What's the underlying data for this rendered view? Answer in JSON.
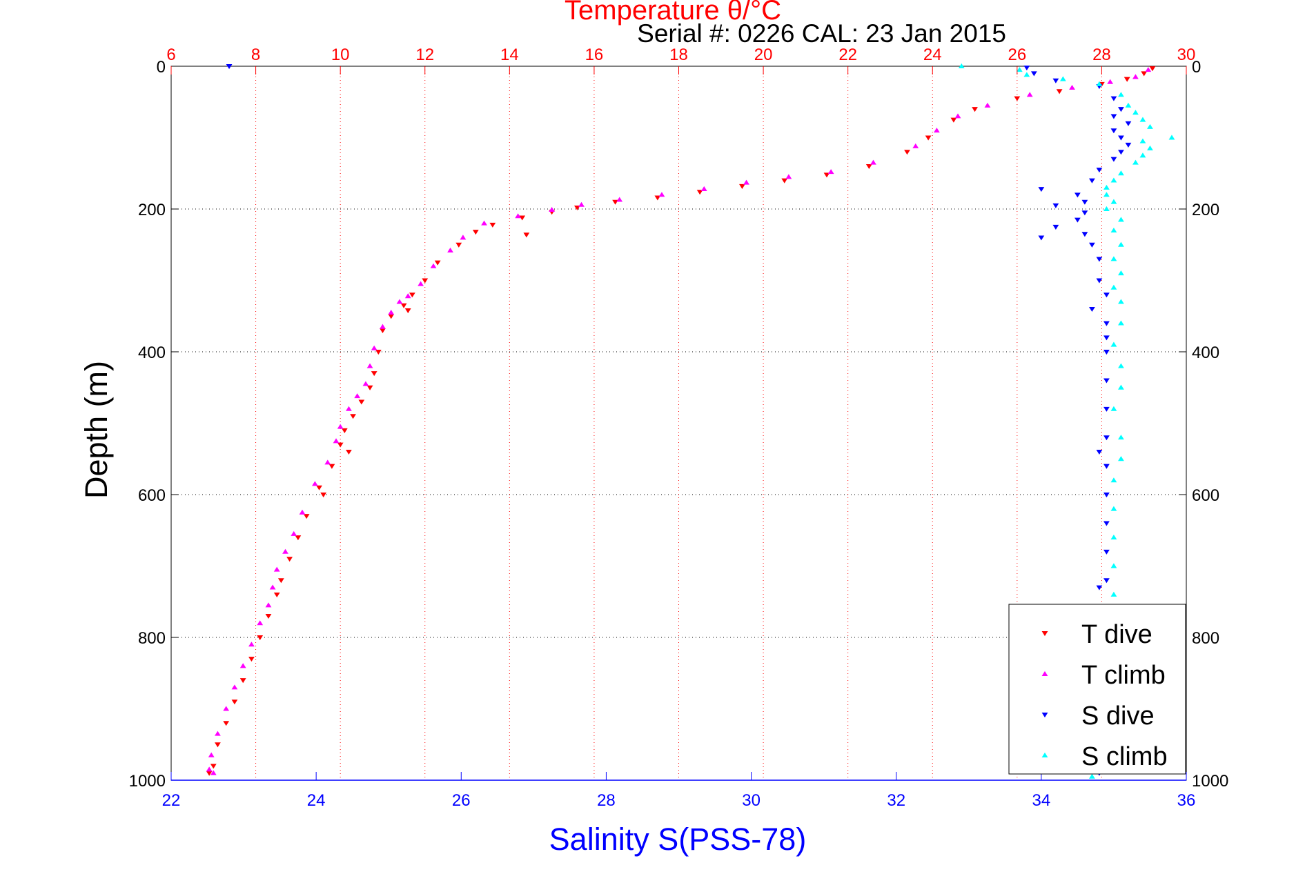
{
  "chart_data": {
    "type": "scatter",
    "title": "Temperature θ/°C",
    "subtitle": "Serial #: 0226  CAL: 23 Jan 2015",
    "ylabel": "Depth (m)",
    "xlabel": "Salinity S(PSS-78)",
    "ylim": [
      0,
      1000
    ],
    "y_reversed": true,
    "y_ticks": [
      "0",
      "200",
      "400",
      "600",
      "800",
      "1000"
    ],
    "x_top": {
      "name": "Temperature",
      "lim": [
        6,
        30
      ],
      "ticks": [
        "6",
        "8",
        "10",
        "12",
        "14",
        "16",
        "18",
        "20",
        "22",
        "24",
        "26",
        "28",
        "30"
      ],
      "color": "#ff0000"
    },
    "x_bottom": {
      "name": "Salinity",
      "lim": [
        22,
        36
      ],
      "ticks": [
        "22",
        "24",
        "26",
        "28",
        "30",
        "32",
        "34",
        "36"
      ],
      "color": "#0000ff"
    },
    "grid": true,
    "legend_position": "bottom-right",
    "series": [
      {
        "name": "T dive",
        "axis": "top",
        "color": "#ff0000",
        "marker": "triangle-down",
        "points": [
          [
            29.2,
            3
          ],
          [
            29.0,
            10
          ],
          [
            28.6,
            18
          ],
          [
            28.0,
            25
          ],
          [
            27.0,
            35
          ],
          [
            26.0,
            45
          ],
          [
            25.0,
            60
          ],
          [
            24.5,
            75
          ],
          [
            23.9,
            100
          ],
          [
            23.4,
            120
          ],
          [
            22.5,
            140
          ],
          [
            21.5,
            152
          ],
          [
            20.5,
            160
          ],
          [
            19.5,
            168
          ],
          [
            18.5,
            176
          ],
          [
            17.5,
            184
          ],
          [
            16.5,
            190
          ],
          [
            15.6,
            198
          ],
          [
            15.0,
            204
          ],
          [
            14.3,
            212
          ],
          [
            13.6,
            222
          ],
          [
            13.2,
            232
          ],
          [
            14.4,
            236
          ],
          [
            12.8,
            250
          ],
          [
            12.3,
            275
          ],
          [
            12.0,
            300
          ],
          [
            11.7,
            320
          ],
          [
            11.5,
            335
          ],
          [
            11.6,
            342
          ],
          [
            11.2,
            350
          ],
          [
            11.0,
            370
          ],
          [
            10.9,
            400
          ],
          [
            10.8,
            430
          ],
          [
            10.7,
            450
          ],
          [
            10.5,
            470
          ],
          [
            10.3,
            490
          ],
          [
            10.1,
            510
          ],
          [
            10.0,
            530
          ],
          [
            10.2,
            540
          ],
          [
            9.8,
            560
          ],
          [
            9.5,
            590
          ],
          [
            9.6,
            600
          ],
          [
            9.2,
            630
          ],
          [
            9.0,
            660
          ],
          [
            8.8,
            690
          ],
          [
            8.6,
            720
          ],
          [
            8.5,
            740
          ],
          [
            8.3,
            770
          ],
          [
            8.1,
            800
          ],
          [
            7.9,
            830
          ],
          [
            7.7,
            860
          ],
          [
            7.5,
            890
          ],
          [
            7.3,
            920
          ],
          [
            7.1,
            950
          ],
          [
            7.0,
            980
          ],
          [
            6.9,
            990
          ]
        ]
      },
      {
        "name": "T climb",
        "axis": "top",
        "color": "#ff00ff",
        "marker": "triangle-up",
        "points": [
          [
            29.1,
            5
          ],
          [
            28.8,
            15
          ],
          [
            28.2,
            22
          ],
          [
            27.3,
            30
          ],
          [
            26.3,
            40
          ],
          [
            25.3,
            55
          ],
          [
            24.6,
            70
          ],
          [
            24.1,
            90
          ],
          [
            23.6,
            112
          ],
          [
            22.6,
            135
          ],
          [
            21.6,
            148
          ],
          [
            20.6,
            155
          ],
          [
            19.6,
            163
          ],
          [
            18.6,
            172
          ],
          [
            17.6,
            180
          ],
          [
            16.6,
            187
          ],
          [
            15.7,
            194
          ],
          [
            15.0,
            201
          ],
          [
            14.2,
            210
          ],
          [
            13.4,
            220
          ],
          [
            12.9,
            240
          ],
          [
            12.6,
            258
          ],
          [
            12.2,
            280
          ],
          [
            11.9,
            305
          ],
          [
            11.6,
            322
          ],
          [
            11.4,
            330
          ],
          [
            11.2,
            345
          ],
          [
            11.0,
            365
          ],
          [
            10.8,
            395
          ],
          [
            10.7,
            420
          ],
          [
            10.6,
            445
          ],
          [
            10.4,
            462
          ],
          [
            10.2,
            480
          ],
          [
            10.0,
            505
          ],
          [
            9.9,
            525
          ],
          [
            9.7,
            555
          ],
          [
            9.4,
            585
          ],
          [
            9.1,
            625
          ],
          [
            8.9,
            655
          ],
          [
            8.7,
            680
          ],
          [
            8.5,
            705
          ],
          [
            8.4,
            730
          ],
          [
            8.3,
            755
          ],
          [
            8.1,
            780
          ],
          [
            7.9,
            810
          ],
          [
            7.7,
            840
          ],
          [
            7.5,
            870
          ],
          [
            7.3,
            900
          ],
          [
            7.1,
            935
          ],
          [
            6.95,
            965
          ],
          [
            6.9,
            985
          ],
          [
            7.0,
            990
          ]
        ]
      },
      {
        "name": "S dive",
        "axis": "bottom",
        "color": "#0000ff",
        "marker": "triangle-down",
        "points": [
          [
            22.8,
            0
          ],
          [
            33.8,
            2
          ],
          [
            33.9,
            10
          ],
          [
            34.2,
            20
          ],
          [
            34.8,
            28
          ],
          [
            35.0,
            45
          ],
          [
            35.1,
            60
          ],
          [
            35.0,
            70
          ],
          [
            35.2,
            80
          ],
          [
            35.0,
            90
          ],
          [
            35.1,
            100
          ],
          [
            35.2,
            110
          ],
          [
            35.1,
            120
          ],
          [
            35.0,
            130
          ],
          [
            34.8,
            145
          ],
          [
            34.7,
            160
          ],
          [
            34.0,
            172
          ],
          [
            34.5,
            180
          ],
          [
            34.6,
            190
          ],
          [
            34.2,
            195
          ],
          [
            34.6,
            205
          ],
          [
            34.5,
            215
          ],
          [
            34.2,
            225
          ],
          [
            34.6,
            235
          ],
          [
            34.0,
            240
          ],
          [
            34.7,
            250
          ],
          [
            34.8,
            270
          ],
          [
            34.8,
            300
          ],
          [
            34.9,
            320
          ],
          [
            34.7,
            340
          ],
          [
            34.9,
            360
          ],
          [
            34.9,
            380
          ],
          [
            34.9,
            400
          ],
          [
            34.9,
            440
          ],
          [
            34.9,
            480
          ],
          [
            34.9,
            520
          ],
          [
            34.8,
            540
          ],
          [
            34.9,
            560
          ],
          [
            34.9,
            600
          ],
          [
            34.9,
            640
          ],
          [
            34.9,
            680
          ],
          [
            34.9,
            720
          ],
          [
            34.8,
            730
          ],
          [
            34.9,
            760
          ],
          [
            34.9,
            800
          ],
          [
            34.9,
            840
          ],
          [
            34.9,
            880
          ],
          [
            34.9,
            920
          ],
          [
            34.8,
            960
          ],
          [
            34.8,
            990
          ]
        ]
      },
      {
        "name": "S climb",
        "axis": "bottom",
        "color": "#00ffff",
        "marker": "triangle-up",
        "points": [
          [
            32.9,
            0
          ],
          [
            33.7,
            5
          ],
          [
            33.8,
            12
          ],
          [
            34.3,
            18
          ],
          [
            34.8,
            25
          ],
          [
            35.1,
            40
          ],
          [
            35.2,
            55
          ],
          [
            35.3,
            65
          ],
          [
            35.4,
            75
          ],
          [
            35.5,
            85
          ],
          [
            35.8,
            100
          ],
          [
            35.4,
            105
          ],
          [
            35.5,
            115
          ],
          [
            35.4,
            125
          ],
          [
            35.3,
            135
          ],
          [
            35.1,
            150
          ],
          [
            35.0,
            160
          ],
          [
            34.9,
            170
          ],
          [
            34.9,
            180
          ],
          [
            35.0,
            190
          ],
          [
            34.9,
            200
          ],
          [
            35.1,
            215
          ],
          [
            35.0,
            230
          ],
          [
            35.1,
            250
          ],
          [
            35.0,
            270
          ],
          [
            35.1,
            290
          ],
          [
            35.0,
            310
          ],
          [
            35.1,
            330
          ],
          [
            35.1,
            360
          ],
          [
            35.0,
            390
          ],
          [
            35.1,
            420
          ],
          [
            35.1,
            450
          ],
          [
            35.0,
            480
          ],
          [
            35.1,
            520
          ],
          [
            35.1,
            550
          ],
          [
            35.0,
            580
          ],
          [
            35.0,
            620
          ],
          [
            35.0,
            660
          ],
          [
            35.0,
            700
          ],
          [
            35.0,
            740
          ],
          [
            35.0,
            780
          ],
          [
            35.0,
            820
          ],
          [
            34.9,
            860
          ],
          [
            34.9,
            900
          ],
          [
            34.9,
            940
          ],
          [
            34.9,
            970
          ],
          [
            34.7,
            995
          ]
        ]
      }
    ]
  }
}
